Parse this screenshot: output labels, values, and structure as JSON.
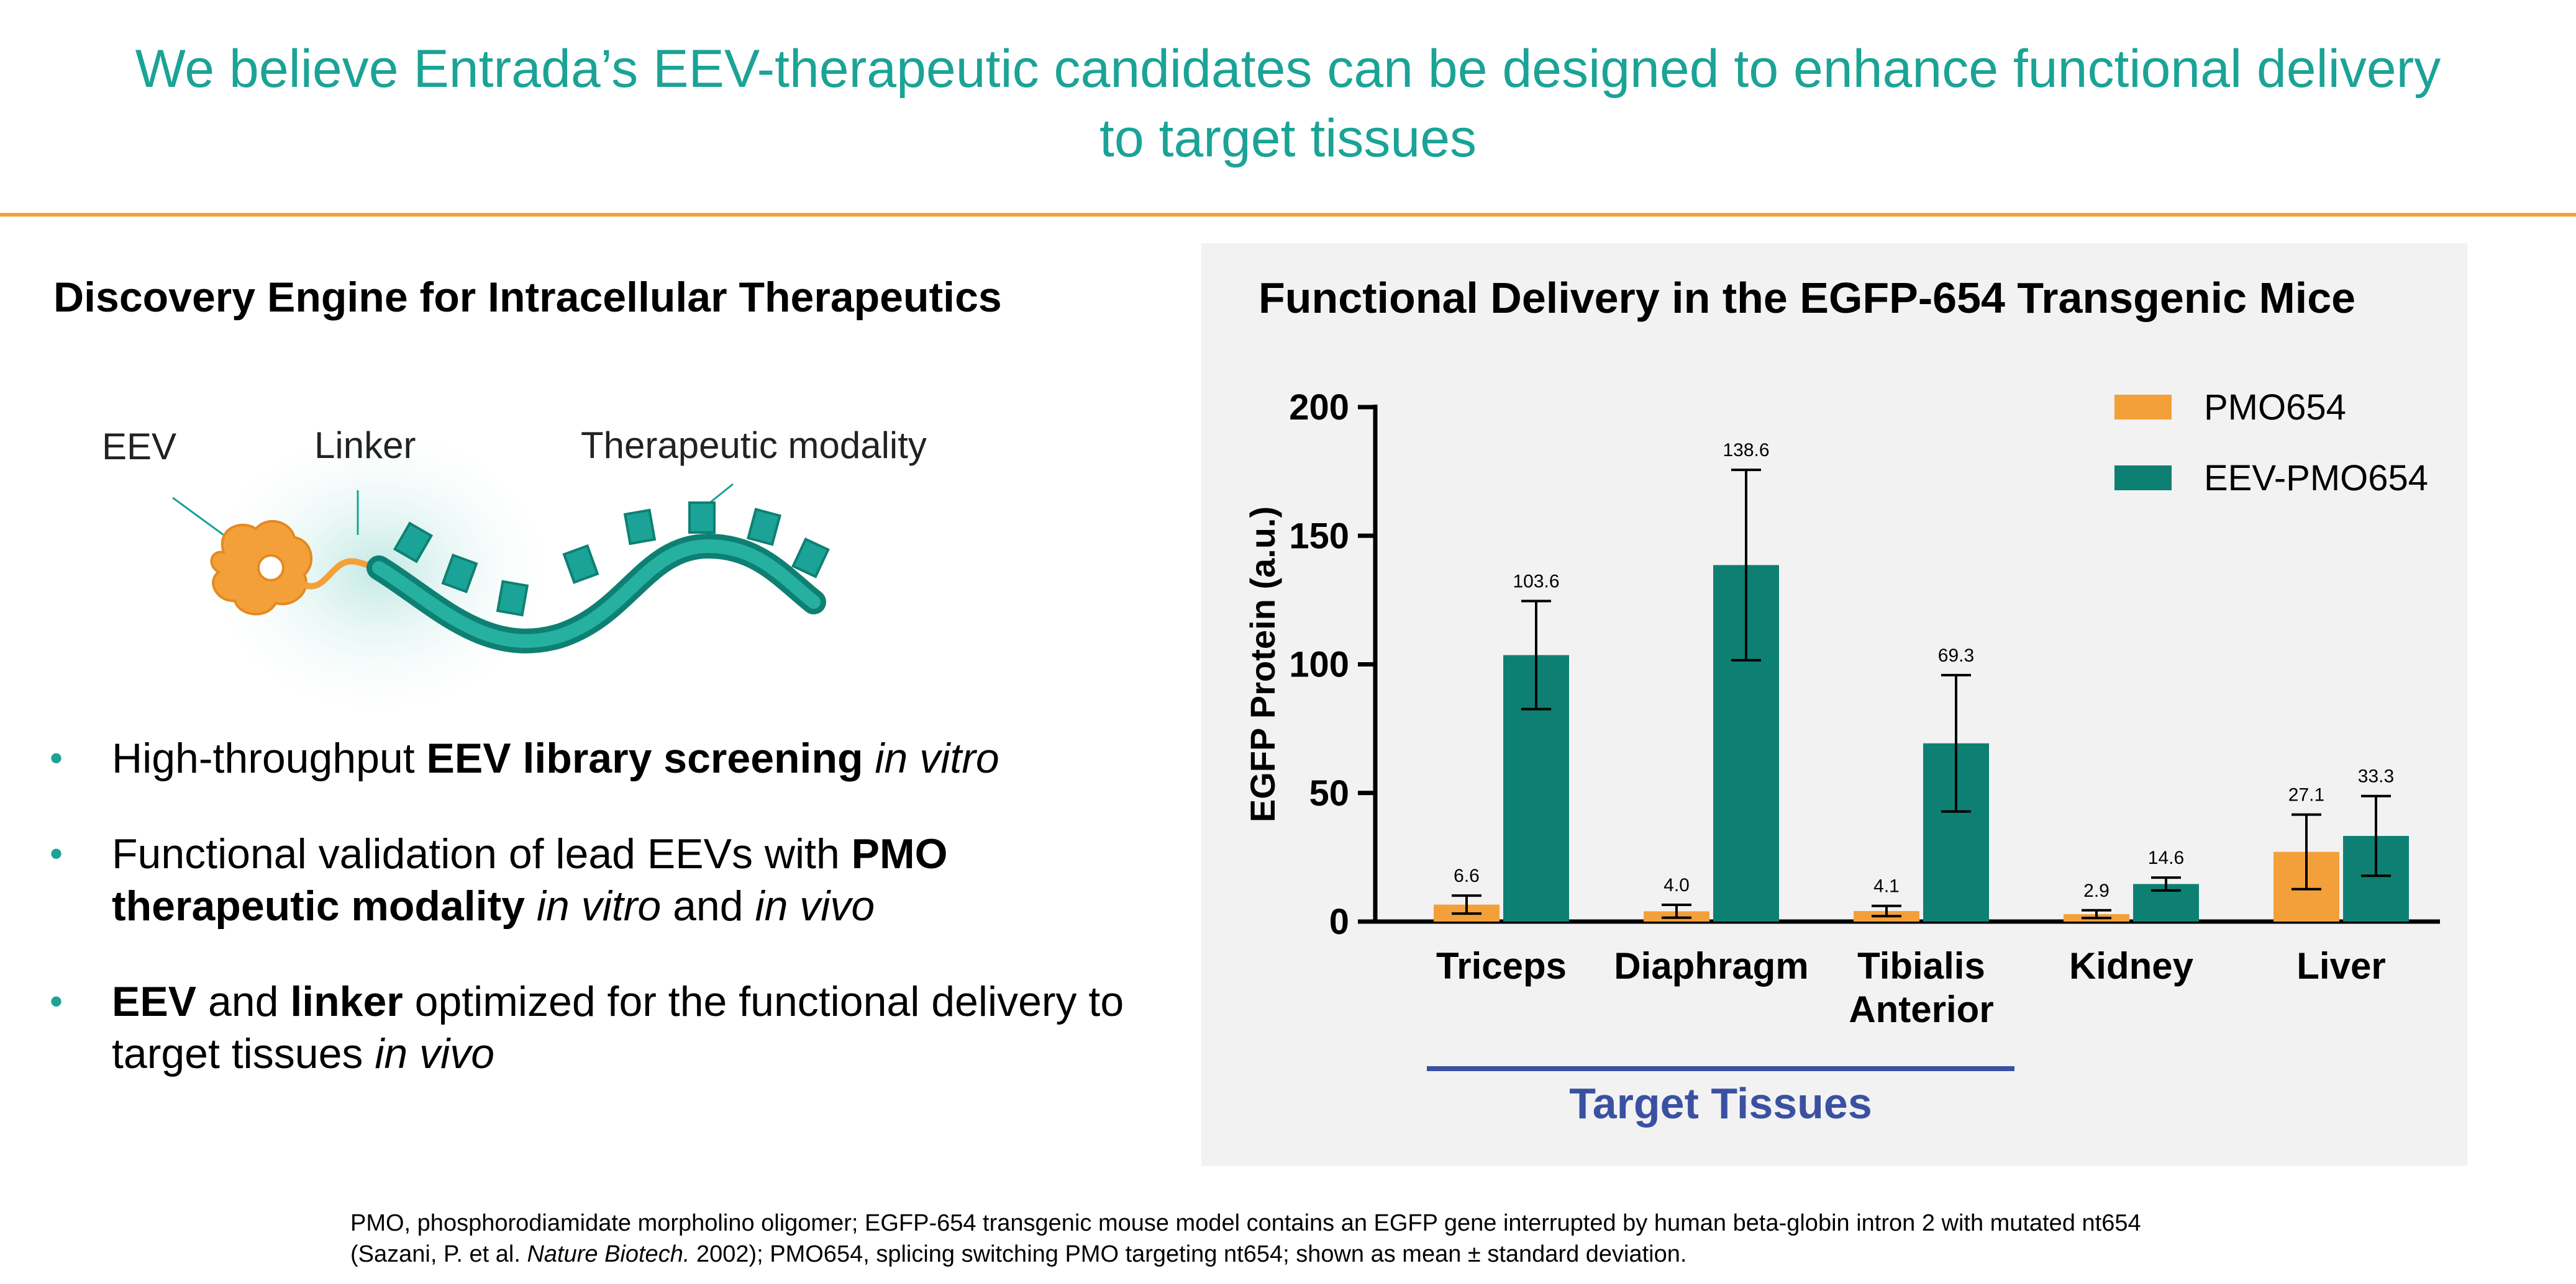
{
  "header": {
    "title_line1": "We believe Entrada’s EEV-therapeutic candidates can be designed to enhance functional delivery",
    "title_line2": "to target tissues"
  },
  "left": {
    "heading": "Discovery Engine for Intracellular Therapeutics",
    "diagram_labels": {
      "eev": "EEV",
      "linker": "Linker",
      "modality": "Therapeutic modality"
    },
    "bullets": [
      {
        "parts": [
          {
            "t": "High-throughput ",
            "s": "n"
          },
          {
            "t": "EEV library screening",
            "s": "b"
          },
          {
            "t": " in vitro",
            "s": "i"
          }
        ]
      },
      {
        "parts": [
          {
            "t": "Functional validation of lead EEVs with ",
            "s": "n"
          },
          {
            "t": "PMO therapeutic modality",
            "s": "b"
          },
          {
            "t": " in vitro",
            "s": "i"
          },
          {
            "t": " and ",
            "s": "n"
          },
          {
            "t": "in vivo",
            "s": "i"
          }
        ]
      },
      {
        "parts": [
          {
            "t": "EEV",
            "s": "b"
          },
          {
            "t": " and ",
            "s": "n"
          },
          {
            "t": "linker",
            "s": "b"
          },
          {
            "t": " optimized for the functional delivery to target tissues ",
            "s": "n"
          },
          {
            "t": "in vivo",
            "s": "i"
          }
        ]
      }
    ],
    "colors": {
      "eev": "#f4a03a",
      "modality": "#1aa396"
    }
  },
  "chart_data": {
    "type": "bar",
    "title": "Functional Delivery in the EGFP-654 Transgenic Mice",
    "ylabel": "EGFP Protein (a.u.)",
    "ylim": [
      0,
      200
    ],
    "yticks": [
      "0",
      "50",
      "100",
      "150",
      "200"
    ],
    "categories": [
      "Triceps",
      "Diaphragm",
      "Tibialis Anterior",
      "Kidney",
      "Liver"
    ],
    "series": [
      {
        "name": "PMO654",
        "color": "#f4a03a",
        "values": [
          6.6,
          4.0,
          4.1,
          2.9,
          27.1
        ],
        "labels": [
          "6.6",
          "4.0",
          "4.1",
          "2.9",
          "27.1"
        ],
        "errors": [
          3.5,
          2.5,
          2.0,
          1.5,
          14.5
        ]
      },
      {
        "name": "EEV-PMO654",
        "color": "#0e8073",
        "values": [
          103.6,
          138.6,
          69.3,
          14.6,
          33.3
        ],
        "labels": [
          "103.6",
          "138.6",
          "69.3",
          "14.6",
          "33.3"
        ],
        "errors": [
          21.0,
          37.0,
          26.5,
          2.5,
          15.5
        ]
      }
    ],
    "legend": "top-right",
    "group_annotation": {
      "label": "Target Tissues",
      "color": "#3a51a2",
      "spans": [
        "Triceps",
        "Diaphragm",
        "Tibialis Anterior"
      ]
    }
  },
  "footnote": {
    "line1": "PMO, phosphorodiamidate morpholino oligomer; EGFP-654 transgenic mouse model contains an EGFP gene interrupted by human beta-globin intron 2 with mutated nt654",
    "line2_pre": "(Sazani, P. et al. ",
    "line2_journal": "Nature Biotech.",
    "line2_post": " 2002); PMO654, splicing switching PMO targeting nt654; shown as mean ± standard deviation."
  }
}
